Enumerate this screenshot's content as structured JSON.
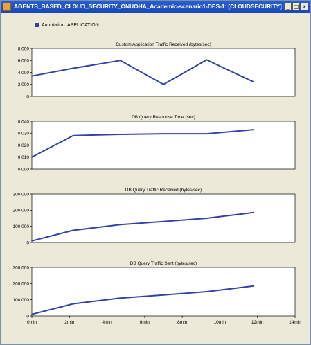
{
  "window": {
    "title": "AGENTS_BASED_CLOUD_SECURITY_ONUOHA_Academic-scenario1-DES-1: [CLOUDSECURITY]",
    "controls": {
      "minimize": "_",
      "maximize": "□",
      "close": "x"
    }
  },
  "legend": {
    "label": "Annotation: APPLICATION",
    "color": "#3341a8"
  },
  "chart_data": [
    {
      "type": "line",
      "title": "Custom Application Traffic Received (bytes/sec)",
      "x": [
        0,
        2.2,
        4.7,
        7,
        9.3,
        11.8
      ],
      "series": [
        {
          "values": [
            3400,
            4700,
            6000,
            2000,
            6100,
            2400
          ]
        }
      ],
      "ylim": [
        0,
        8000
      ],
      "yticks": [
        0,
        2000,
        4000,
        6000,
        8000
      ],
      "ytick_labels": [
        "0",
        "2,000",
        "4,000",
        "6,000",
        "8,000"
      ],
      "xlim": [
        0,
        14
      ]
    },
    {
      "type": "line",
      "title": "DB Query Response Time (sec)",
      "x": [
        0,
        2.2,
        4.7,
        7,
        9.3,
        11.8
      ],
      "series": [
        {
          "values": [
            0.01,
            0.028,
            0.029,
            0.0295,
            0.0295,
            0.033
          ]
        }
      ],
      "ylim": [
        0,
        0.04
      ],
      "yticks": [
        0,
        0.01,
        0.02,
        0.03,
        0.04
      ],
      "ytick_labels": [
        "0.000",
        "0.010",
        "0.020",
        "0.030",
        "0.040"
      ],
      "xlim": [
        0,
        14
      ]
    },
    {
      "type": "line",
      "title": "DB Query Traffic Received (bytes/sec)",
      "x": [
        0,
        2.2,
        4.7,
        7,
        9.3,
        11.8
      ],
      "series": [
        {
          "values": [
            10000,
            75000,
            110000,
            130000,
            150000,
            185000
          ]
        }
      ],
      "ylim": [
        0,
        300000
      ],
      "yticks": [
        0,
        100000,
        200000,
        300000
      ],
      "ytick_labels": [
        "0",
        "100,000",
        "200,000",
        "300,000"
      ],
      "xlim": [
        0,
        14
      ]
    },
    {
      "type": "line",
      "title": "DB Query Traffic Sent (bytes/sec)",
      "x": [
        0,
        2.2,
        4.7,
        7,
        9.3,
        11.8
      ],
      "series": [
        {
          "values": [
            10000,
            75000,
            110000,
            130000,
            150000,
            185000
          ]
        }
      ],
      "ylim": [
        0,
        300000
      ],
      "yticks": [
        0,
        100000,
        200000,
        300000
      ],
      "ytick_labels": [
        "0",
        "100,000",
        "200,000",
        "300,000"
      ],
      "xlim": [
        0,
        14
      ],
      "xticks": [
        0,
        2,
        4,
        6,
        8,
        10,
        12,
        14
      ],
      "xtick_labels": [
        "0min",
        "2min",
        "4min",
        "6min",
        "8min",
        "10min",
        "12min",
        "14min"
      ]
    }
  ],
  "line_color": "#3341a8"
}
